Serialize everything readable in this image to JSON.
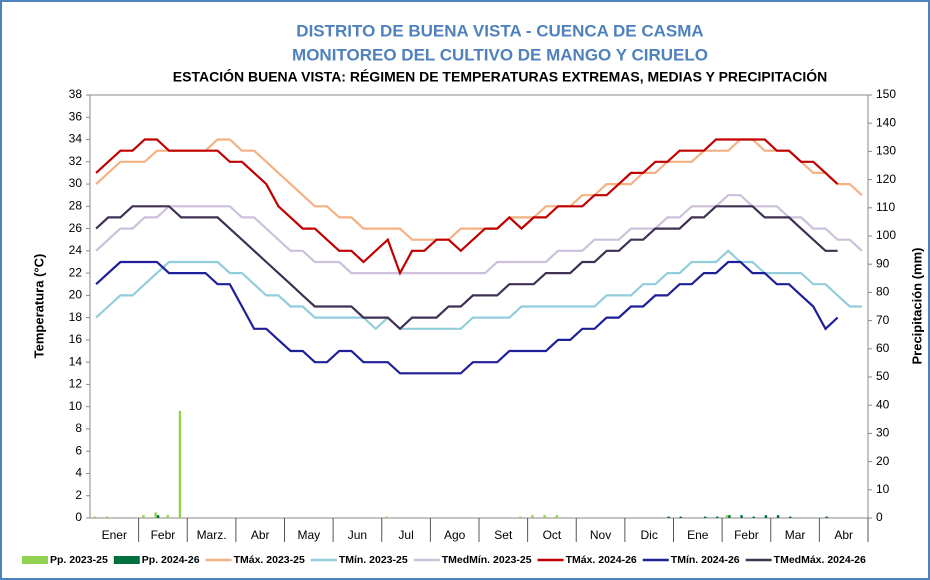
{
  "chart_data": {
    "type": "line",
    "title": "DISTRITO DE BUENA VISTA - CUENCA DE CASMA",
    "subtitle": "MONITOREO DEL CULTIVO DE MANGO Y CIRUELO",
    "chart_subtitle": "ESTACIÓN BUENA VISTA: RÉGIMEN DE TEMPERATURAS EXTREMAS, MEDIAS Y PRECIPITACIÓN",
    "y_label": "Temperatura (°C)",
    "y2_label": "Precipitación (mm)",
    "categories": [
      "Ener",
      null,
      null,
      null,
      "Febr",
      null,
      null,
      null,
      "Marz.",
      null,
      null,
      null,
      "Abr",
      null,
      null,
      null,
      "May",
      null,
      null,
      null,
      "Jun",
      null,
      null,
      null,
      "Jul",
      null,
      null,
      null,
      "Ago",
      null,
      null,
      null,
      "Set",
      null,
      null,
      null,
      "Oct",
      null,
      null,
      null,
      "Nov",
      null,
      null,
      null,
      "Dic",
      null,
      null,
      null,
      "Ene",
      null,
      null,
      null,
      "Febr",
      null,
      null,
      null,
      "Mar",
      null,
      null,
      null,
      "Abr",
      null,
      null,
      null
    ],
    "ylim": [
      0,
      38
    ],
    "yticks": [
      0,
      2,
      4,
      6,
      8,
      10,
      12,
      14,
      16,
      18,
      20,
      22,
      24,
      26,
      28,
      30,
      32,
      34,
      36,
      38
    ],
    "y2lim": [
      0,
      150
    ],
    "y2ticks": [
      0,
      10,
      20,
      30,
      40,
      50,
      60,
      70,
      80,
      90,
      100,
      110,
      120,
      130,
      140,
      150
    ],
    "grid": false,
    "legend": "bottom",
    "series": [
      {
        "name": "Pp. 2023-25",
        "type": "bar",
        "axis": "y2",
        "color": "#92d050",
        "values": [
          0.5,
          0.5,
          0,
          0,
          1,
          2,
          1,
          38,
          0,
          0,
          0,
          0,
          0,
          0,
          0,
          0,
          0,
          0,
          0,
          0,
          0,
          0,
          0,
          0,
          0.5,
          0,
          0,
          0,
          0,
          0,
          0,
          0,
          0,
          0,
          0,
          0.5,
          1,
          1,
          1,
          0,
          0,
          0,
          0,
          0,
          0,
          0,
          0,
          0,
          0,
          0,
          0,
          0,
          1,
          0,
          0,
          0,
          0,
          0,
          0,
          0,
          0,
          0,
          0,
          0
        ]
      },
      {
        "name": "Pp. 2024-26",
        "type": "bar",
        "axis": "y2",
        "color": "#00703c",
        "values": [
          0,
          0,
          0,
          0,
          0,
          1,
          0,
          0,
          0,
          0,
          0,
          0,
          0,
          0,
          0,
          0,
          0,
          0,
          0,
          0,
          0,
          0,
          0,
          0,
          0,
          0,
          0,
          0,
          0,
          0,
          0,
          0,
          0,
          0,
          0,
          0,
          0,
          0,
          0,
          0,
          0,
          0,
          0,
          0,
          0,
          0,
          0,
          0.5,
          0.5,
          0,
          0.5,
          0.5,
          1,
          1,
          0.5,
          1,
          1,
          0.5,
          0,
          0,
          0.5,
          0,
          0,
          0
        ]
      },
      {
        "name": "TMáx. 2023-25",
        "color": "#f4b183",
        "values": [
          30,
          31,
          32,
          32,
          32,
          33,
          33,
          33,
          33,
          33,
          34,
          34,
          33,
          33,
          32,
          31,
          30,
          29,
          28,
          28,
          27,
          27,
          26,
          26,
          26,
          26,
          25,
          25,
          25,
          25,
          26,
          26,
          26,
          26,
          27,
          27,
          27,
          28,
          28,
          28,
          29,
          29,
          30,
          30,
          30,
          31,
          31,
          32,
          32,
          32,
          33,
          33,
          33,
          34,
          34,
          33,
          33,
          33,
          32,
          31,
          31,
          30,
          30,
          29
        ]
      },
      {
        "name": "TMín. 2023-25",
        "color": "#92cddc",
        "values": [
          18,
          19,
          20,
          20,
          21,
          22,
          23,
          23,
          23,
          23,
          23,
          22,
          22,
          21,
          20,
          20,
          19,
          19,
          18,
          18,
          18,
          18,
          18,
          17,
          18,
          17,
          17,
          17,
          17,
          17,
          17,
          18,
          18,
          18,
          18,
          19,
          19,
          19,
          19,
          19,
          19,
          19,
          20,
          20,
          20,
          21,
          21,
          22,
          22,
          23,
          23,
          23,
          24,
          23,
          23,
          22,
          22,
          22,
          22,
          21,
          21,
          20,
          19,
          19
        ]
      },
      {
        "name": "TMedMín. 2023-25",
        "color": "#ccc0da",
        "values": [
          24,
          25,
          26,
          26,
          27,
          27,
          28,
          28,
          28,
          28,
          28,
          28,
          27,
          27,
          26,
          25,
          24,
          24,
          23,
          23,
          23,
          22,
          22,
          22,
          22,
          22,
          22,
          22,
          22,
          22,
          22,
          22,
          22,
          23,
          23,
          23,
          23,
          23,
          24,
          24,
          24,
          25,
          25,
          25,
          26,
          26,
          26,
          27,
          27,
          28,
          28,
          28,
          29,
          29,
          28,
          28,
          28,
          27,
          27,
          26,
          26,
          25,
          25,
          24
        ]
      },
      {
        "name": "TMáx. 2024-26",
        "color": "#c00000",
        "values": [
          31,
          32,
          33,
          33,
          34,
          34,
          33,
          33,
          33,
          33,
          33,
          32,
          32,
          31,
          30,
          28,
          27,
          26,
          26,
          25,
          24,
          24,
          23,
          24,
          25,
          22,
          24,
          24,
          25,
          25,
          24,
          25,
          26,
          26,
          27,
          26,
          27,
          27,
          28,
          28,
          28,
          29,
          29,
          30,
          31,
          31,
          32,
          32,
          33,
          33,
          33,
          34,
          34,
          34,
          34,
          34,
          33,
          33,
          32,
          32,
          31,
          30,
          null,
          null
        ]
      },
      {
        "name": "TMín. 2024-26",
        "color": "#1f1f99",
        "values": [
          21,
          22,
          23,
          23,
          23,
          23,
          22,
          22,
          22,
          22,
          21,
          21,
          19,
          17,
          17,
          16,
          15,
          15,
          14,
          14,
          15,
          15,
          14,
          14,
          14,
          13,
          13,
          13,
          13,
          13,
          13,
          14,
          14,
          14,
          15,
          15,
          15,
          15,
          16,
          16,
          17,
          17,
          18,
          18,
          19,
          19,
          20,
          20,
          21,
          21,
          22,
          22,
          23,
          23,
          22,
          22,
          21,
          21,
          20,
          19,
          17,
          18,
          null,
          null
        ]
      },
      {
        "name": "TMedMáx. 2024-26",
        "color": "#3f3151",
        "values": [
          26,
          27,
          27,
          28,
          28,
          28,
          28,
          27,
          27,
          27,
          27,
          26,
          25,
          24,
          23,
          22,
          21,
          20,
          19,
          19,
          19,
          19,
          18,
          18,
          18,
          17,
          18,
          18,
          18,
          19,
          19,
          20,
          20,
          20,
          21,
          21,
          21,
          22,
          22,
          22,
          23,
          23,
          24,
          24,
          25,
          25,
          26,
          26,
          26,
          27,
          27,
          28,
          28,
          28,
          28,
          27,
          27,
          27,
          26,
          25,
          24,
          24,
          null,
          null
        ]
      }
    ]
  }
}
